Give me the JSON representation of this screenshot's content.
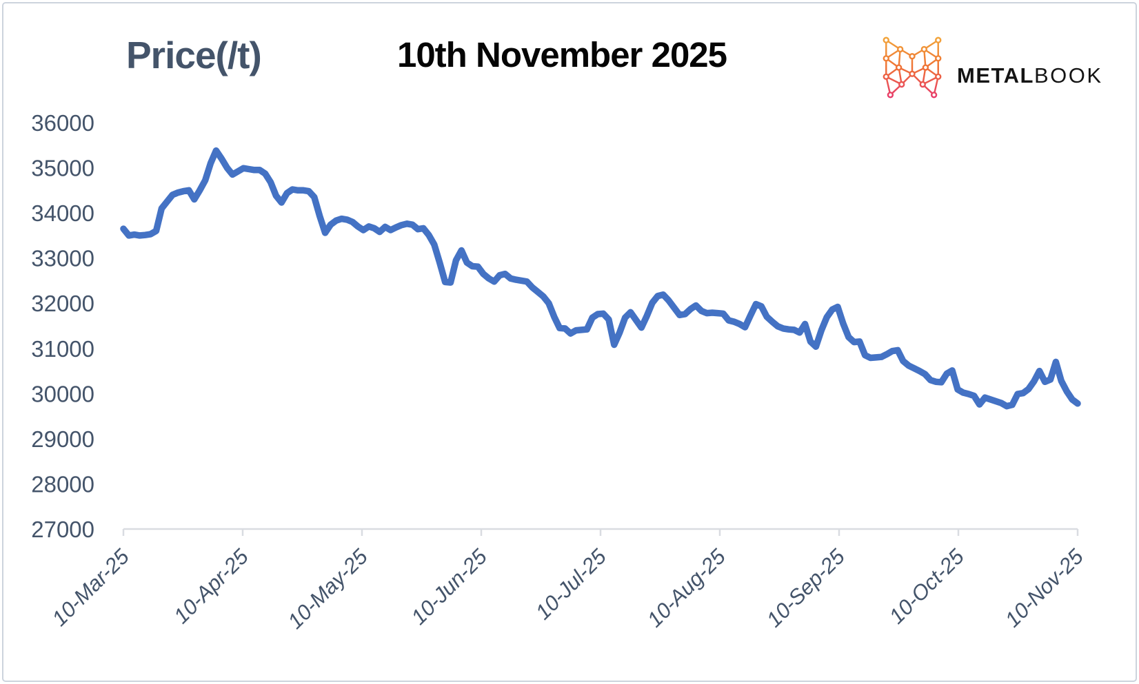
{
  "header": {
    "y_axis_title": "Price(/t)",
    "chart_title": "10th November 2025"
  },
  "logo": {
    "brand_bold": "METAL",
    "brand_light": "BOOK"
  },
  "colors": {
    "line": "#4472C4",
    "axis": "#D9DCE1",
    "tick_label": "#44546A",
    "title": "#050505",
    "logo_gradient_top": "#F2A93B",
    "logo_gradient_mid": "#EF7335",
    "logo_gradient_bottom": "#E73A6E"
  },
  "chart_data": {
    "type": "line",
    "title": "10th November 2025",
    "ylabel": "Price(/t)",
    "xlabel": "",
    "series_name": "Price (/t)",
    "grid": false,
    "legend_position": "none",
    "ylim": [
      27000,
      36000
    ],
    "y_ticks": [
      27000,
      28000,
      29000,
      30000,
      31000,
      32000,
      33000,
      34000,
      35000,
      36000
    ],
    "x_tick_labels": [
      "10-Mar-25",
      "10-Apr-25",
      "10-May-25",
      "10-Jun-25",
      "10-Jul-25",
      "10-Aug-25",
      "10-Sep-25",
      "10-Oct-25",
      "10-Nov-25"
    ],
    "x_start": "10-Mar-25",
    "x_end": "10-Nov-25",
    "values": [
      33650,
      33500,
      33520,
      33500,
      33510,
      33530,
      33600,
      34100,
      34250,
      34400,
      34450,
      34480,
      34500,
      34300,
      34500,
      34720,
      35100,
      35380,
      35200,
      35000,
      34850,
      34920,
      34990,
      34970,
      34950,
      34950,
      34870,
      34680,
      34380,
      34230,
      34440,
      34520,
      34500,
      34500,
      34480,
      34350,
      33930,
      33560,
      33740,
      33830,
      33870,
      33850,
      33800,
      33700,
      33620,
      33700,
      33660,
      33580,
      33690,
      33620,
      33680,
      33730,
      33760,
      33740,
      33640,
      33660,
      33510,
      33300,
      32900,
      32470,
      32460,
      32950,
      33170,
      32900,
      32820,
      32810,
      32650,
      32550,
      32480,
      32620,
      32650,
      32550,
      32520,
      32500,
      32480,
      32350,
      32250,
      32150,
      32000,
      31700,
      31450,
      31440,
      31330,
      31400,
      31410,
      31420,
      31680,
      31760,
      31770,
      31640,
      31080,
      31350,
      31680,
      31800,
      31630,
      31460,
      31720,
      32010,
      32160,
      32190,
      32060,
      31900,
      31740,
      31760,
      31870,
      31950,
      31830,
      31780,
      31790,
      31780,
      31770,
      31620,
      31590,
      31540,
      31470,
      31730,
      31980,
      31930,
      31700,
      31590,
      31490,
      31440,
      31420,
      31410,
      31350,
      31540,
      31150,
      31040,
      31400,
      31690,
      31860,
      31920,
      31550,
      31250,
      31140,
      31150,
      30850,
      30790,
      30800,
      30810,
      30870,
      30940,
      30960,
      30720,
      30620,
      30560,
      30500,
      30430,
      30300,
      30260,
      30250,
      30440,
      30510,
      30090,
      30020,
      29990,
      29950,
      29760,
      29910,
      29870,
      29830,
      29790,
      29720,
      29750,
      29990,
      30010,
      30100,
      30270,
      30500,
      30260,
      30310,
      30700,
      30280,
      30050,
      29870,
      29780
    ]
  }
}
